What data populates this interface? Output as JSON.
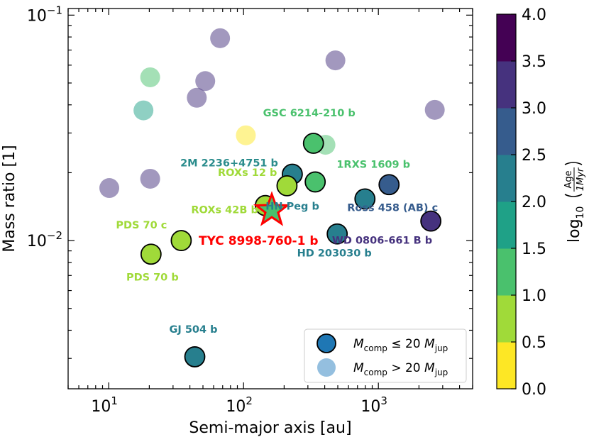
{
  "chart_data": {
    "type": "scatter",
    "xlabel": "Semi-major axis [au]",
    "ylabel": "Mass ratio [1]",
    "xscale": "log",
    "yscale": "log",
    "xlim": [
      5,
      5000
    ],
    "ylim": [
      0.0022,
      0.107
    ],
    "x_ticks": [
      {
        "value": 10,
        "base": "10",
        "exp": "1"
      },
      {
        "value": 100,
        "base": "10",
        "exp": "2"
      },
      {
        "value": 1000,
        "base": "10",
        "exp": "3"
      }
    ],
    "y_ticks": [
      {
        "value": 0.01,
        "base": "10",
        "exp": "−2"
      },
      {
        "value": 0.1,
        "base": "10",
        "exp": "−1"
      }
    ],
    "colorbar": {
      "label": "log10(Age / 1Myr)",
      "label_prefix": "log",
      "label_sub": "10",
      "label_num": "Age",
      "label_den": "1Myr",
      "range": [
        0,
        4
      ],
      "ticks": [
        "0.0",
        "0.5",
        "1.0",
        "1.5",
        "2.0",
        "2.5",
        "3.0",
        "3.5",
        "4.0"
      ],
      "colors": [
        "#fde725",
        "#a0da39",
        "#4ac16d",
        "#1fa187",
        "#277f8e",
        "#365c8d",
        "#46327e",
        "#440154"
      ]
    },
    "legend": {
      "location": "lower right",
      "entries": [
        {
          "label_main": "M",
          "label_sub": "comp",
          "relation": "≤ 20",
          "label_main2": "M",
          "label_sub2": "jup",
          "color": "#1f77b4"
        },
        {
          "label_main": "M",
          "label_sub": "comp",
          "relation": "> 20",
          "label_main2": "M",
          "label_sub2": "jup",
          "color": "#94bfdf"
        }
      ]
    },
    "highlight": {
      "name": "TYC 8998-760-1 b",
      "x": 162,
      "y": 0.0136,
      "age_log": 1.2,
      "label_color": "#ff0000"
    },
    "series": [
      {
        "name": "M_comp ≤ 20 M_jup",
        "points": [
          {
            "name": "GSC 6214-210 b",
            "x": 330,
            "y": 0.027,
            "age_log": 1.2,
            "label_color": "#4ac16d"
          },
          {
            "name": "2M 2236+4751 b",
            "x": 230,
            "y": 0.0197,
            "age_log": 2.1,
            "label_color": "#2a8c8c"
          },
          {
            "name": "1RXS 1609 b",
            "x": 340,
            "y": 0.0182,
            "age_log": 1.1,
            "label_color": "#4ac16d"
          },
          {
            "name": "ROXs 12 b",
            "x": 210,
            "y": 0.0175,
            "age_log": 0.8,
            "label_color": "#a0da39"
          },
          {
            "name": "ROXs 42B b",
            "x": 145,
            "y": 0.0143,
            "age_log": 0.8,
            "label_color": "#a0da39"
          },
          {
            "name": "HN Peg b",
            "x": 795,
            "y": 0.0153,
            "age_log": 2.3,
            "label_color": "#277f8e"
          },
          {
            "name": "Ross 458 (AB) c",
            "x": 1200,
            "y": 0.0177,
            "age_log": 2.8,
            "label_color": "#365c8d"
          },
          {
            "name": "WD 0806-661 B b",
            "x": 2450,
            "y": 0.0122,
            "age_log": 3.3,
            "label_color": "#46327e"
          },
          {
            "name": "HD 203030 b",
            "x": 495,
            "y": 0.0107,
            "age_log": 2.4,
            "label_color": "#277f8e"
          },
          {
            "name": "PDS 70 c",
            "x": 34.5,
            "y": 0.01,
            "age_log": 0.7,
            "label_color": "#a0da39"
          },
          {
            "name": "PDS 70 b",
            "x": 20.6,
            "y": 0.0087,
            "age_log": 0.7,
            "label_color": "#a0da39"
          },
          {
            "name": "GJ 504 b",
            "x": 43.5,
            "y": 0.00305,
            "age_log": 2.3,
            "label_color": "#277f8e"
          }
        ]
      },
      {
        "name": "M_comp > 20 M_jup",
        "points": [
          {
            "x": 67,
            "y": 0.079,
            "age_log": 3.4
          },
          {
            "x": 480,
            "y": 0.063,
            "age_log": 3.4
          },
          {
            "x": 20.3,
            "y": 0.053,
            "age_log": 1.2
          },
          {
            "x": 52,
            "y": 0.051,
            "age_log": 3.3
          },
          {
            "x": 45,
            "y": 0.043,
            "age_log": 3.3
          },
          {
            "x": 18.1,
            "y": 0.0378,
            "age_log": 1.8
          },
          {
            "x": 2620,
            "y": 0.038,
            "age_log": 3.3
          },
          {
            "x": 104,
            "y": 0.0293,
            "age_log": 0.1
          },
          {
            "x": 405,
            "y": 0.0266,
            "age_log": 1.2
          },
          {
            "x": 20.3,
            "y": 0.0188,
            "age_log": 3.0
          },
          {
            "x": 10.1,
            "y": 0.0171,
            "age_log": 3.3
          }
        ]
      }
    ]
  }
}
